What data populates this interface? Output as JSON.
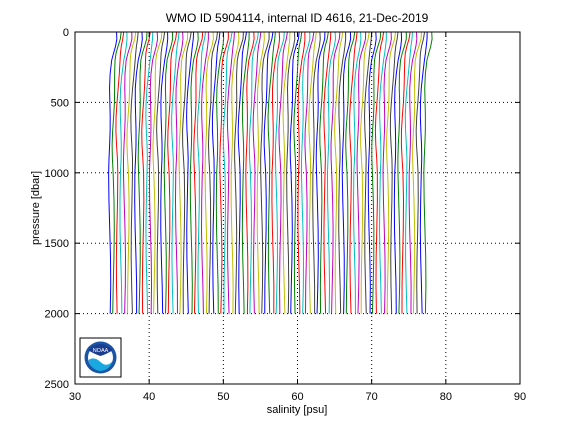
{
  "chart_data": {
    "type": "line",
    "title": "WMO ID 5904114, internal ID 4616, 21-Dec-2019",
    "xlabel": "salinity [psu]",
    "ylabel": "pressure [dbar]",
    "xlim": [
      30,
      90
    ],
    "ylim": [
      2500,
      0
    ],
    "y_reversed": true,
    "xticks": [
      30,
      40,
      50,
      60,
      70,
      80,
      90
    ],
    "yticks": [
      0,
      500,
      1000,
      1500,
      2000,
      2500
    ],
    "grid": true,
    "grid_style": "dotted",
    "profile_offset_psu": 0.5,
    "profile_count": 86,
    "first_profile_deep_salinity": 34.7,
    "pressure_levels": [
      0,
      50,
      100,
      150,
      200,
      300,
      400,
      500,
      600,
      700,
      800,
      900,
      1000,
      1200,
      1400,
      1600,
      1800,
      2000
    ],
    "base_profile_salinity_anomaly": [
      0.9,
      0.85,
      0.65,
      0.45,
      0.3,
      0.15,
      0.05,
      0.0,
      -0.05,
      -0.08,
      -0.08,
      -0.06,
      -0.05,
      -0.03,
      -0.02,
      -0.01,
      0.0,
      0.0
    ],
    "series_colors": [
      "#0000ff",
      "#008000",
      "#ff0000",
      "#00bfbf",
      "#bf00bf",
      "#bfbf00",
      "#404040"
    ]
  },
  "logo": {
    "label": "NOAA"
  }
}
